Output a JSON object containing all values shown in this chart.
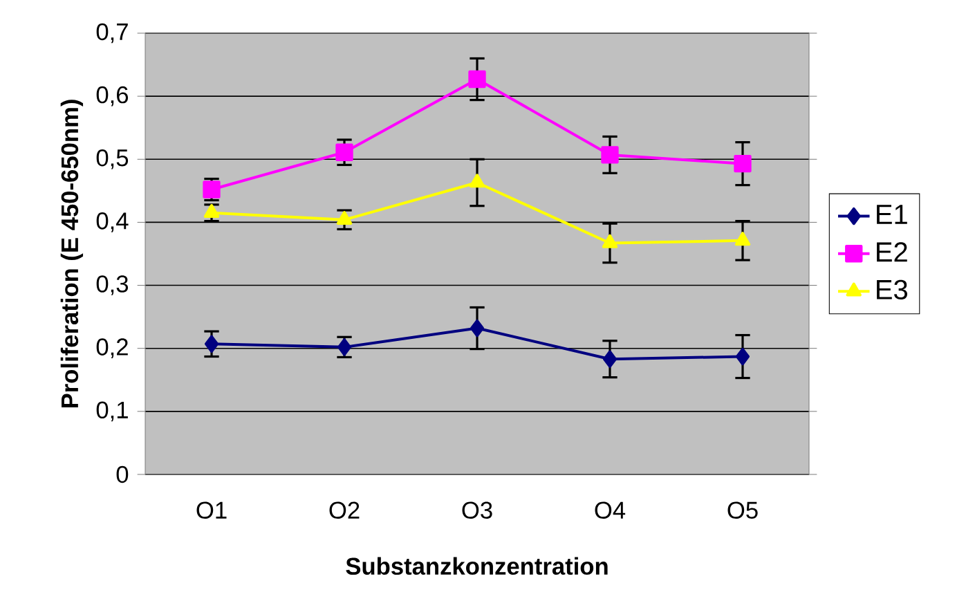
{
  "chart_data": {
    "type": "line",
    "xlabel": "Substanzkonzentration",
    "ylabel": "Proliferation (E 450-650nm)",
    "categories": [
      "O1",
      "O2",
      "O3",
      "O4",
      "O5"
    ],
    "series": [
      {
        "name": "E1",
        "color": "#000080",
        "marker": "diamond",
        "values": [
          0.207,
          0.202,
          0.232,
          0.183,
          0.187
        ],
        "errors": [
          0.02,
          0.016,
          0.033,
          0.029,
          0.034
        ]
      },
      {
        "name": "E2",
        "color": "#ff00ff",
        "marker": "square",
        "values": [
          0.452,
          0.511,
          0.627,
          0.507,
          0.493
        ],
        "errors": [
          0.017,
          0.02,
          0.033,
          0.029,
          0.034
        ]
      },
      {
        "name": "E3",
        "color": "#ffff00",
        "marker": "triangle",
        "values": [
          0.415,
          0.404,
          0.463,
          0.367,
          0.371
        ],
        "errors": [
          0.013,
          0.015,
          0.037,
          0.031,
          0.031
        ]
      }
    ],
    "ylim": [
      0,
      0.7
    ],
    "yticks": [
      {
        "value": 0,
        "label": "0"
      },
      {
        "value": 0.1,
        "label": "0,1"
      },
      {
        "value": 0.2,
        "label": "0,2"
      },
      {
        "value": 0.3,
        "label": "0,3"
      },
      {
        "value": 0.4,
        "label": "0,4"
      },
      {
        "value": 0.5,
        "label": "0,5"
      },
      {
        "value": 0.6,
        "label": "0,6"
      },
      {
        "value": 0.7,
        "label": "0,7"
      }
    ],
    "grid": "y",
    "legend": "right",
    "line_style": "solid"
  }
}
